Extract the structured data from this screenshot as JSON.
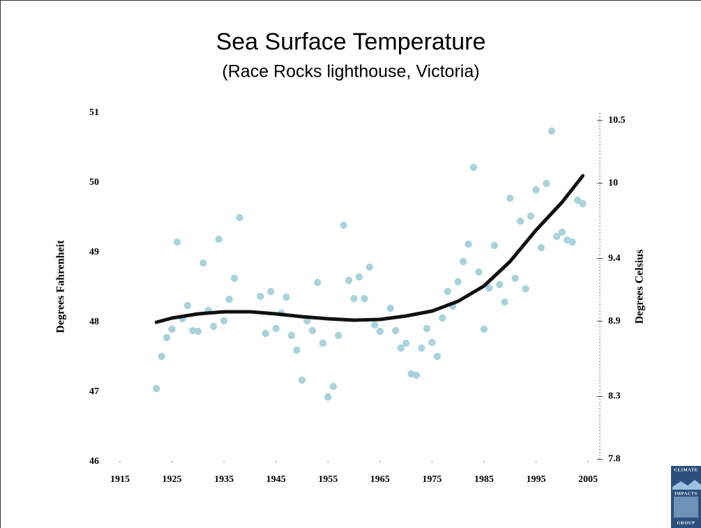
{
  "chart_data": {
    "type": "scatter",
    "title": "Sea Surface Temperature",
    "subtitle": "(Race Rocks lighthouse, Victoria)",
    "ylabel": "Degrees Fahrenheit",
    "y2label": "Degrees Celsius",
    "xlim": [
      1915,
      2005
    ],
    "xticks": [
      1915,
      1925,
      1935,
      1945,
      1955,
      1965,
      1975,
      1985,
      1995,
      2005
    ],
    "ylim": [
      46,
      51
    ],
    "yticks": [
      46,
      47,
      48,
      49,
      50,
      51
    ],
    "y2lim": [
      7.78,
      10.56
    ],
    "y2ticks": [
      7.8,
      8.3,
      8.9,
      9.4,
      10,
      10.5
    ],
    "series": [
      {
        "type": "scatter",
        "color": "#a9d3dc",
        "x": [
          1922,
          1923,
          1924,
          1925,
          1926,
          1927,
          1928,
          1929,
          1930,
          1931,
          1932,
          1933,
          1934,
          1935,
          1936,
          1937,
          1938,
          1942,
          1943,
          1944,
          1945,
          1946,
          1947,
          1948,
          1949,
          1950,
          1951,
          1952,
          1953,
          1954,
          1955,
          1956,
          1957,
          1958,
          1959,
          1960,
          1961,
          1962,
          1963,
          1964,
          1965,
          1967,
          1968,
          1969,
          1970,
          1971,
          1972,
          1973,
          1974,
          1975,
          1976,
          1977,
          1978,
          1979,
          1980,
          1981,
          1982,
          1983,
          1984,
          1985,
          1986,
          1987,
          1988,
          1989,
          1990,
          1991,
          1992,
          1993,
          1994,
          1995,
          1996,
          1997,
          1998,
          1999,
          2000,
          2001,
          2002,
          2003,
          2004
        ],
        "values": [
          47.05,
          47.51,
          47.78,
          47.9,
          49.15,
          48.05,
          48.24,
          47.88,
          47.87,
          48.85,
          48.17,
          47.94,
          49.19,
          48.02,
          48.33,
          48.63,
          49.5,
          48.37,
          47.84,
          48.44,
          47.91,
          48.13,
          48.36,
          47.81,
          47.6,
          47.17,
          48.02,
          47.88,
          48.57,
          47.7,
          46.93,
          47.08,
          47.81,
          49.39,
          48.6,
          48.34,
          48.65,
          48.34,
          48.79,
          47.96,
          47.87,
          48.2,
          47.88,
          47.63,
          47.7,
          47.26,
          47.24,
          47.63,
          47.91,
          47.71,
          47.51,
          48.06,
          48.44,
          48.23,
          48.58,
          48.87,
          49.12,
          50.22,
          48.72,
          47.9,
          48.49,
          49.1,
          48.54,
          48.29,
          49.78,
          48.63,
          49.45,
          48.48,
          49.52,
          49.9,
          49.07,
          49.99,
          50.74,
          49.23,
          49.29,
          49.18,
          49.15,
          49.75,
          49.7
        ]
      },
      {
        "type": "line",
        "color": "#111111",
        "x": [
          1922,
          1925,
          1930,
          1935,
          1940,
          1945,
          1950,
          1955,
          1960,
          1965,
          1970,
          1975,
          1980,
          1985,
          1990,
          1995,
          2000,
          2004
        ],
        "values": [
          48.0,
          48.06,
          48.12,
          48.15,
          48.15,
          48.12,
          48.08,
          48.05,
          48.03,
          48.04,
          48.09,
          48.16,
          48.3,
          48.52,
          48.87,
          49.32,
          49.72,
          50.1
        ]
      }
    ]
  },
  "logo_text": [
    "CLIMATE",
    "IMPACTS",
    "GROUP"
  ]
}
